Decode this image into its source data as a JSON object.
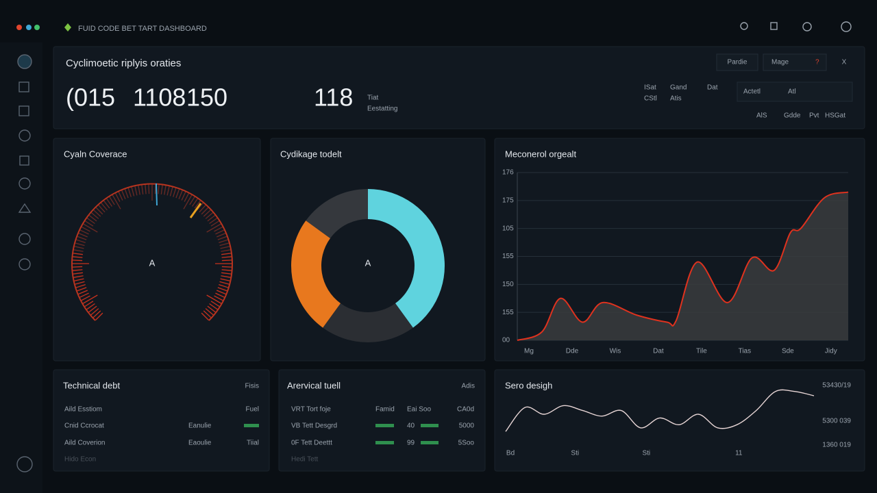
{
  "header": {
    "title": "FUID CODE BET TART DASHBOARD"
  },
  "summary": {
    "title": "Cyclimoetic riplyis oraties",
    "stats": [
      "(015",
      "1108",
      "150",
      "118"
    ],
    "note": [
      "Tiat",
      "Eestatting"
    ],
    "meta": [
      "ISat",
      "Gand",
      "Dat",
      "CStl",
      "Atis"
    ],
    "tabs": [
      "Actetl",
      "Atl"
    ],
    "links": [
      "AlS",
      "Gdde",
      "Pvt",
      "HSGat"
    ],
    "buttons": [
      "Pardie",
      "Mage",
      "?",
      "X"
    ]
  },
  "gauge": {
    "title": "Cyaln Coverace",
    "center": "A"
  },
  "donut": {
    "type": "pie",
    "title": "Cydikage todelt",
    "center": "A",
    "values": [
      40,
      20,
      25,
      15
    ],
    "colors": [
      "#5fd3de",
      "#2b2e33",
      "#e8781e",
      "#35383d"
    ]
  },
  "area": {
    "type": "area",
    "title": "Meconerol orgealt",
    "color": "#e0321e",
    "grid": true,
    "x": [
      -0.27,
      0.3,
      0.73,
      1.24,
      1.71,
      2.5,
      3.2,
      3.41,
      3.9,
      4.6,
      5.17,
      5.68,
      6.06,
      6.3,
      6.85,
      7.4
    ],
    "values": [
      0,
      0.3,
      1.5,
      0.65,
      1.35,
      0.9,
      0.65,
      0.7,
      2.8,
      1.35,
      2.95,
      2.5,
      3.85,
      4.0,
      5.1,
      5.3
    ],
    "xlim": [
      -0.27,
      7.4
    ],
    "ylim": [
      0,
      6
    ],
    "xticks": [
      {
        "value": 0,
        "label": "Mg"
      },
      {
        "value": 1,
        "label": "Dde"
      },
      {
        "value": 2,
        "label": "Wis"
      },
      {
        "value": 3,
        "label": "Dat"
      },
      {
        "value": 4,
        "label": "Tile"
      },
      {
        "value": 5,
        "label": "Tias"
      },
      {
        "value": 6,
        "label": "Sde"
      },
      {
        "value": 7,
        "label": "Jidy"
      }
    ],
    "yticks": [
      {
        "value": 0,
        "label": "00"
      },
      {
        "value": 1,
        "label": "155"
      },
      {
        "value": 2,
        "label": "150"
      },
      {
        "value": 3,
        "label": "155"
      },
      {
        "value": 4,
        "label": "105"
      },
      {
        "value": 5,
        "label": "175"
      },
      {
        "value": 6,
        "label": "176"
      }
    ]
  },
  "trend": {
    "type": "line",
    "title": "Sero desigh",
    "color": "#e8d6d6",
    "values": [
      2.2,
      6.1,
      5,
      6.4,
      5.6,
      4.7,
      5.6,
      2.8,
      4.4,
      3.3,
      5,
      2.8,
      3.3,
      5.6,
      8.7,
      8.7,
      8
    ],
    "xlim": [
      0,
      16
    ],
    "ylim": [
      0,
      10
    ],
    "xticks": [
      {
        "value": 0.25,
        "label": "Bd"
      },
      {
        "value": 3.6,
        "label": "Sti"
      },
      {
        "value": 7.3,
        "label": "Sti"
      },
      {
        "value": 12.1,
        "label": "11"
      }
    ],
    "yticks": [
      {
        "value": 0,
        "label": "1360 019"
      },
      {
        "value": 3.9,
        "label": "5300 039"
      },
      {
        "value": 9.7,
        "label": "53430/19"
      }
    ]
  },
  "debt": {
    "title": "Technical debt",
    "badge": "Fisis",
    "rows": [
      {
        "label": "Aild Esstiom",
        "value": "Fuel"
      },
      {
        "label": "Cnid Ccrocat",
        "status": "Eanulie"
      },
      {
        "label": "Aild Coverion",
        "status": "Eaoulie",
        "value": "Tiial"
      },
      {
        "label": "Hido Econ"
      }
    ]
  },
  "arch": {
    "title": "Arervical tuell",
    "badge": "Adis",
    "header": [
      "VRT Tort foje",
      "Famid",
      "Eai Soo",
      "CA0d"
    ],
    "rows": [
      {
        "label": "VB Tett Desgrd",
        "score": "40",
        "value": "5000"
      },
      {
        "label": "0F Tett Deettt",
        "score": "99",
        "value": "5Soo"
      },
      {
        "label": "Hedi Tett"
      }
    ]
  }
}
